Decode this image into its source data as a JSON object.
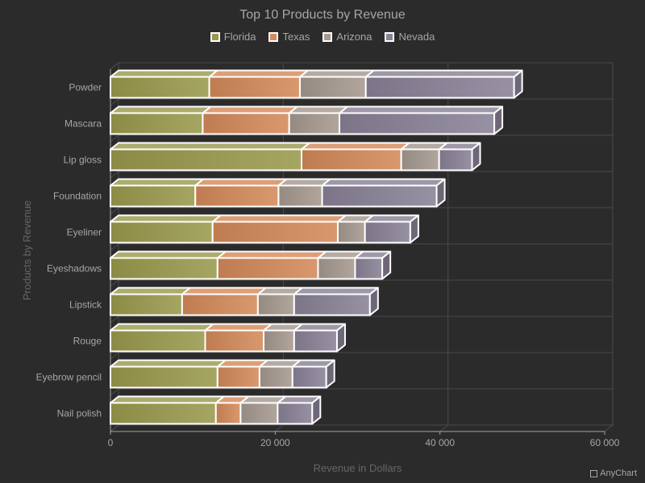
{
  "chart_data": {
    "type": "bar",
    "orientation": "horizontal",
    "stacked": true,
    "title": "Top 10 Products by Revenue",
    "xlabel": "Revenue in Dollars",
    "ylabel": "Products by Revenue",
    "xlim": [
      0,
      60000
    ],
    "x_ticks": [
      "0",
      "20 000",
      "40 000",
      "60 000"
    ],
    "grid": true,
    "legend_position": "top",
    "categories": [
      "Powder",
      "Mascara",
      "Lip gloss",
      "Foundation",
      "Eyeliner",
      "Eyeshadows",
      "Lipstick",
      "Rouge",
      "Eyebrow pencil",
      "Nail polish"
    ],
    "series": [
      {
        "name": "Florida",
        "color": "#9a9a4e",
        "values": [
          12000,
          11200,
          23200,
          10300,
          12400,
          13000,
          8700,
          11500,
          13000,
          12800
        ]
      },
      {
        "name": "Texas",
        "color": "#d48a5a",
        "values": [
          11000,
          10500,
          12100,
          10100,
          15200,
          12200,
          9200,
          7100,
          5100,
          3000
        ]
      },
      {
        "name": "Arizona",
        "color": "#a6998f",
        "values": [
          8000,
          6100,
          4600,
          5300,
          3300,
          4500,
          4400,
          3700,
          4000,
          4500
        ]
      },
      {
        "name": "Nevada",
        "color": "#8a8196",
        "values": [
          18000,
          18800,
          4000,
          13900,
          5500,
          3300,
          9200,
          5200,
          4100,
          4200
        ]
      }
    ]
  },
  "credits": "AnyChart"
}
